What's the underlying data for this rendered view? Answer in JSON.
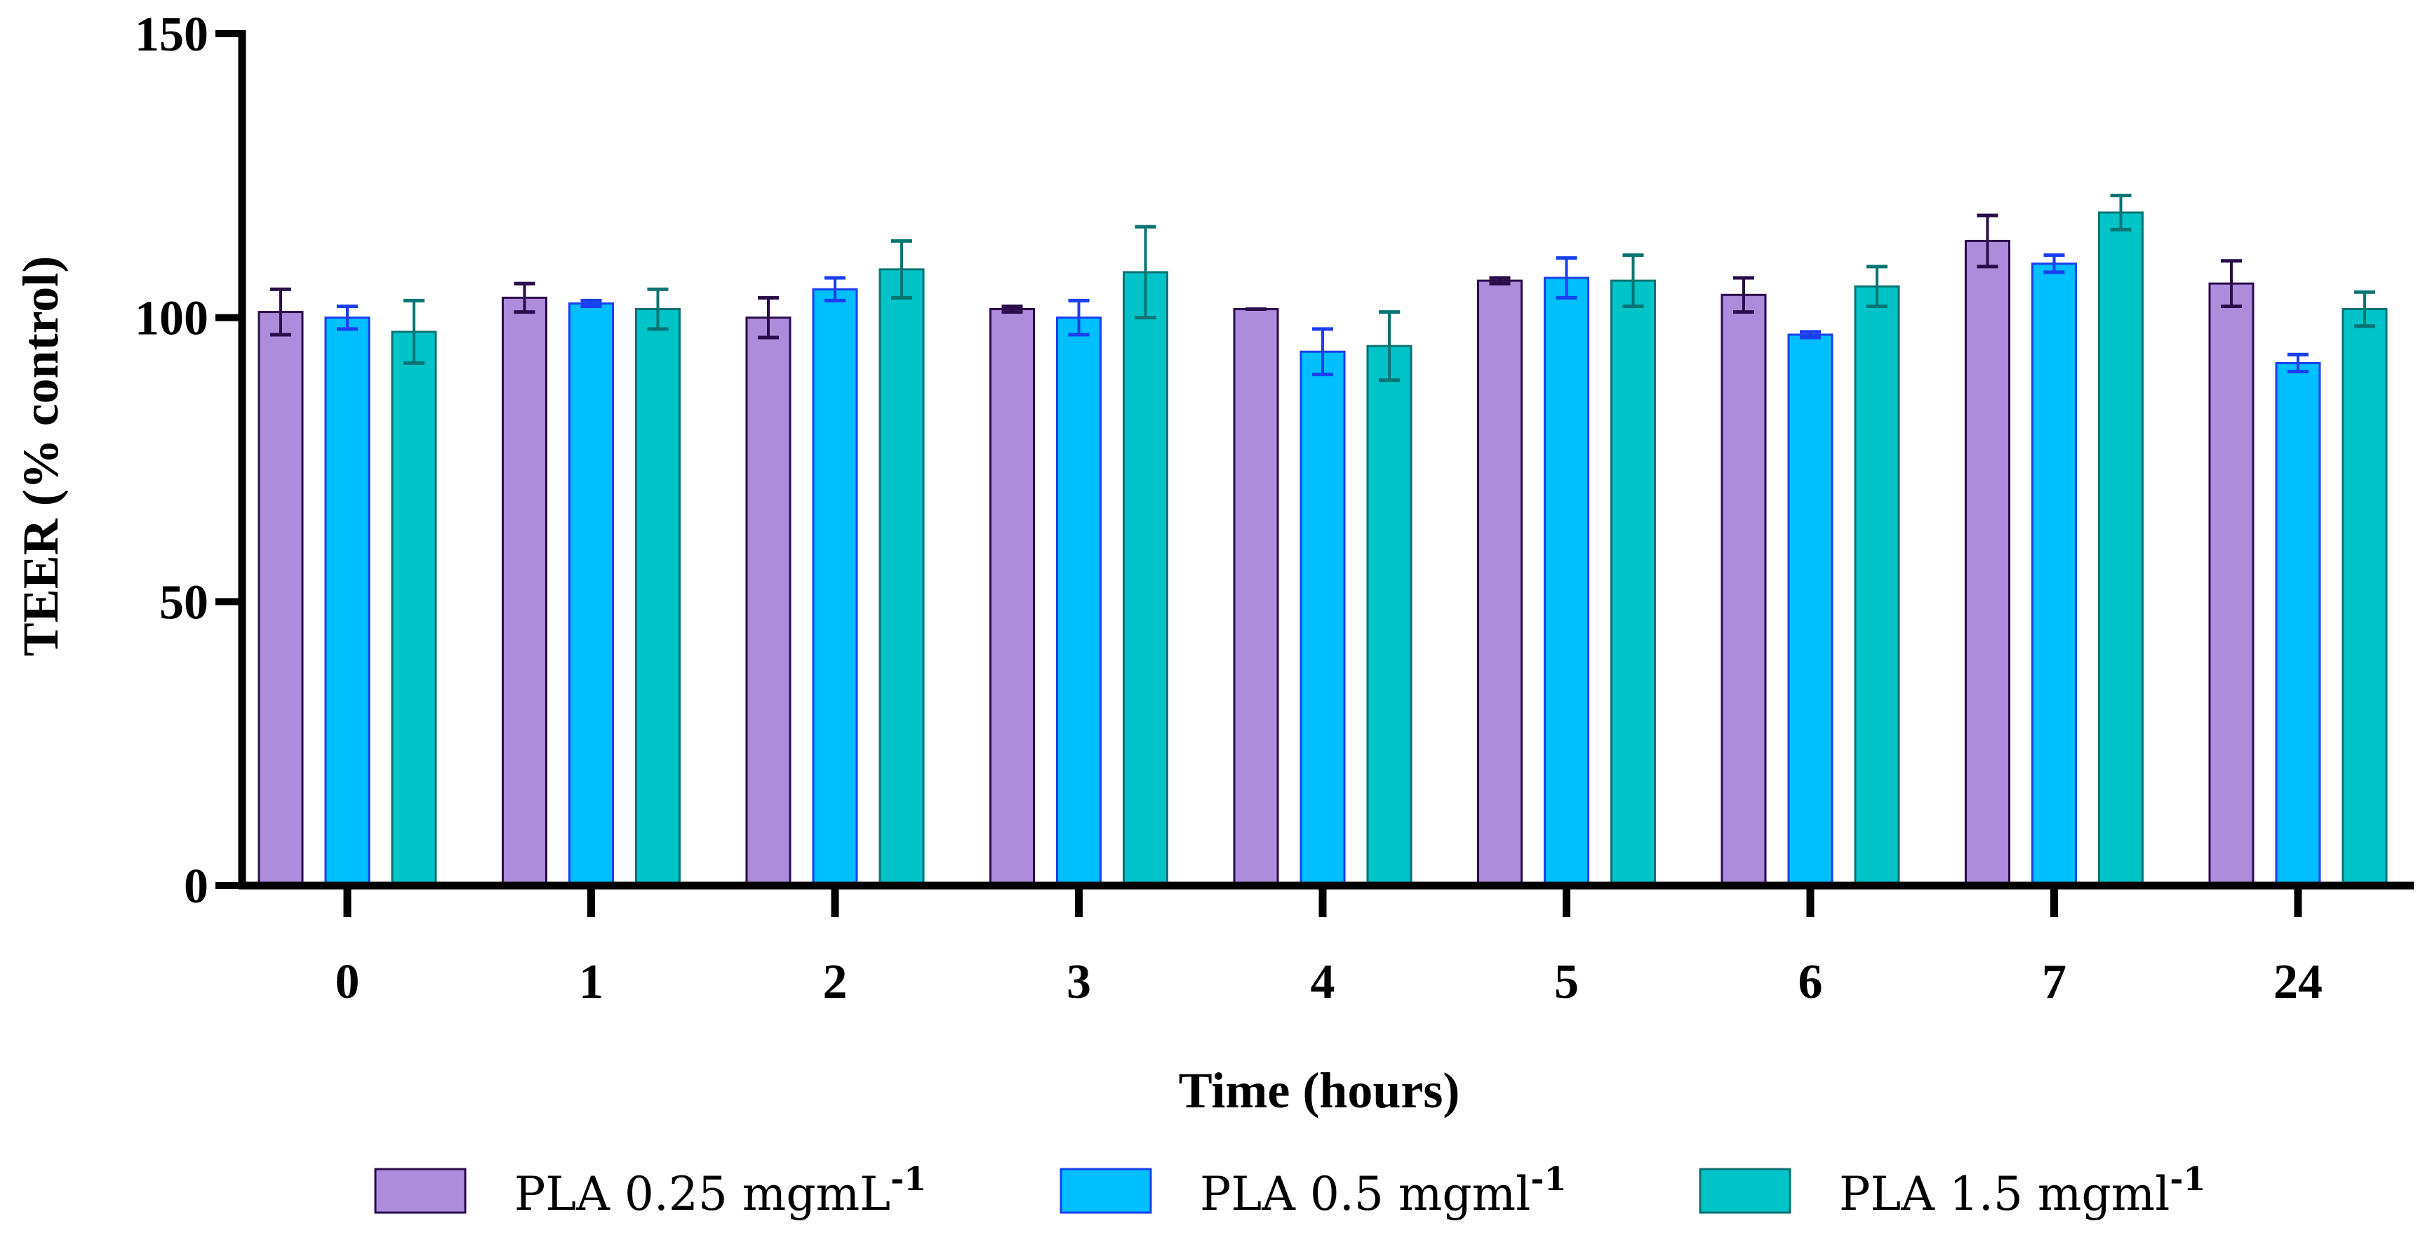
{
  "chart_data": {
    "type": "bar",
    "xlabel": "Time (hours)",
    "ylabel": "TEER (% control)",
    "ylim": [
      0,
      150
    ],
    "yticks": [
      "0",
      "50",
      "100",
      "150"
    ],
    "categories": [
      "0",
      "1",
      "2",
      "3",
      "4",
      "5",
      "6",
      "7",
      "24"
    ],
    "grid": false,
    "legend_position": "bottom",
    "series": [
      {
        "name": "PLA 0.25 mgmL",
        "superscript": "-1",
        "fill": "#ae8cdc",
        "stroke": "#2b0c4a",
        "values": [
          101,
          103.5,
          100,
          101.5,
          101.5,
          106.5,
          104,
          113.5,
          106
        ],
        "errors": [
          4,
          2.5,
          3.5,
          0.5,
          0,
          0.5,
          3,
          4.5,
          4
        ]
      },
      {
        "name": "PLA 0.5 mgml",
        "superscript": "-1",
        "fill": "#00bfff",
        "stroke": "#1a3ff0",
        "values": [
          100,
          102.5,
          105,
          100,
          94,
          107,
          97,
          109.5,
          92
        ],
        "errors": [
          2,
          0.5,
          2,
          3,
          4,
          3.5,
          0.5,
          1.5,
          1.5
        ]
      },
      {
        "name": "PLA 1.5 mgml",
        "superscript": "-1",
        "fill": "#00c4c8",
        "stroke": "#0a7373",
        "values": [
          97.5,
          101.5,
          108.5,
          108,
          95,
          106.5,
          105.5,
          118.5,
          101.5
        ],
        "errors": [
          5.5,
          3.5,
          5,
          8,
          6,
          4.5,
          3.5,
          3,
          3
        ]
      }
    ]
  }
}
